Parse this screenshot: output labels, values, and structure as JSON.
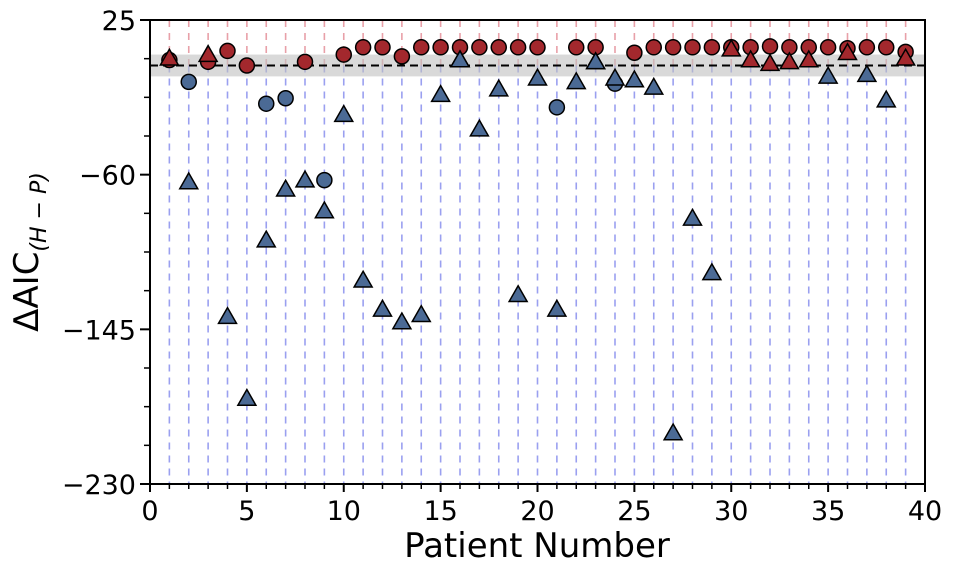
{
  "chart_data": {
    "type": "scatter",
    "xlabel": "Patient Number",
    "ylabel": "ΔAIC",
    "ylabel_subscript": "(H − P)",
    "xlim": [
      0,
      40
    ],
    "ylim": [
      -230,
      25
    ],
    "x_ticks": [
      0,
      5,
      10,
      15,
      20,
      25,
      30,
      35,
      40
    ],
    "y_ticks": [
      -230,
      -145,
      -60,
      25
    ],
    "x_tick_labels": [
      "0",
      "5",
      "10",
      "15",
      "20",
      "25",
      "30",
      "35",
      "40"
    ],
    "y_tick_labels": [
      "−230",
      "−145",
      "−60",
      "25"
    ],
    "reference_line_y": 0,
    "reference_band": [
      -6,
      6
    ],
    "vertical_guides": {
      "x": [
        1,
        2,
        3,
        4,
        5,
        6,
        7,
        8,
        9,
        10,
        11,
        12,
        13,
        14,
        15,
        16,
        17,
        18,
        19,
        20,
        21,
        22,
        23,
        24,
        25,
        26,
        27,
        28,
        29,
        30,
        31,
        32,
        33,
        34,
        35,
        36,
        37,
        38,
        39
      ],
      "upper_color": "#e8a0a8",
      "lower_color": "#9aa0f0"
    },
    "colors": {
      "red_fill": "#a3282d",
      "blue_fill": "#4b6a95",
      "edge": "#000000",
      "band": "#bfbfbf"
    },
    "series": [
      {
        "marker": "circle",
        "color": "#a3282d",
        "points": [
          [
            1,
            3
          ],
          [
            3,
            2
          ],
          [
            4,
            8
          ],
          [
            5,
            0
          ],
          [
            8,
            2
          ],
          [
            10,
            6
          ],
          [
            11,
            10
          ],
          [
            12,
            10
          ],
          [
            13,
            5
          ],
          [
            14,
            10
          ],
          [
            15,
            10
          ],
          [
            16,
            10
          ],
          [
            17,
            10
          ],
          [
            18,
            10
          ],
          [
            19,
            10
          ],
          [
            20,
            10
          ],
          [
            22,
            10
          ],
          [
            23,
            10
          ],
          [
            25,
            7
          ],
          [
            26,
            10
          ],
          [
            27,
            10
          ],
          [
            28,
            10
          ],
          [
            29,
            10
          ],
          [
            30,
            10
          ],
          [
            31,
            10
          ],
          [
            32,
            10.5
          ],
          [
            33,
            10
          ],
          [
            34,
            10
          ],
          [
            35,
            10
          ],
          [
            36,
            9.5
          ],
          [
            37,
            10
          ],
          [
            38,
            10
          ],
          [
            39,
            7.5
          ]
        ]
      },
      {
        "marker": "triangle",
        "color": "#a3282d",
        "points": [
          [
            1,
            4
          ],
          [
            3,
            6
          ],
          [
            16,
            3
          ],
          [
            23,
            2
          ],
          [
            30,
            9
          ],
          [
            31,
            3
          ],
          [
            32,
            1
          ],
          [
            33,
            2
          ],
          [
            34,
            3
          ],
          [
            36,
            7
          ],
          [
            39,
            4
          ]
        ]
      },
      {
        "marker": "circle",
        "color": "#4b6a95",
        "points": [
          [
            2,
            -9
          ],
          [
            6,
            -21
          ],
          [
            7,
            -18
          ],
          [
            9,
            -63
          ],
          [
            21,
            -23
          ],
          [
            24,
            -10
          ]
        ]
      },
      {
        "marker": "triangle",
        "color": "#4b6a95",
        "points": [
          [
            2,
            -64
          ],
          [
            4,
            -138
          ],
          [
            5,
            -183
          ],
          [
            6,
            -96
          ],
          [
            7,
            -68
          ],
          [
            8,
            -63
          ],
          [
            9,
            -80
          ],
          [
            10,
            -27
          ],
          [
            11,
            -118
          ],
          [
            12,
            -134
          ],
          [
            13,
            -141
          ],
          [
            14,
            -137
          ],
          [
            15,
            -16
          ],
          [
            16,
            3
          ],
          [
            17,
            -35
          ],
          [
            18,
            -13
          ],
          [
            19,
            -126
          ],
          [
            20,
            -7
          ],
          [
            21,
            -134
          ],
          [
            22,
            -9
          ],
          [
            23,
            2
          ],
          [
            24,
            -7
          ],
          [
            25,
            -8
          ],
          [
            26,
            -12
          ],
          [
            27,
            -202
          ],
          [
            28,
            -84
          ],
          [
            29,
            -114
          ],
          [
            35,
            -6
          ],
          [
            37,
            -5
          ],
          [
            38,
            -19
          ]
        ]
      }
    ]
  }
}
